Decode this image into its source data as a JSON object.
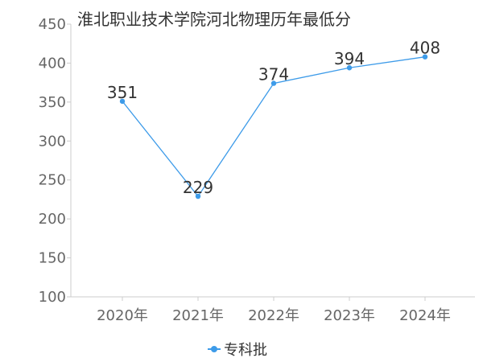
{
  "chart_data": {
    "type": "line",
    "title": "淮北职业技术学院河北物理历年最低分",
    "categories": [
      "2020年",
      "2021年",
      "2022年",
      "2023年",
      "2024年"
    ],
    "series": [
      {
        "name": "专科批",
        "values": [
          351,
          229,
          374,
          394,
          408
        ]
      }
    ],
    "yticks": [
      "100",
      "150",
      "200",
      "250",
      "300",
      "350",
      "400",
      "450"
    ],
    "ylim": [
      100,
      450
    ],
    "grid": false,
    "legend": "bottom",
    "color": "#3d9be9"
  }
}
